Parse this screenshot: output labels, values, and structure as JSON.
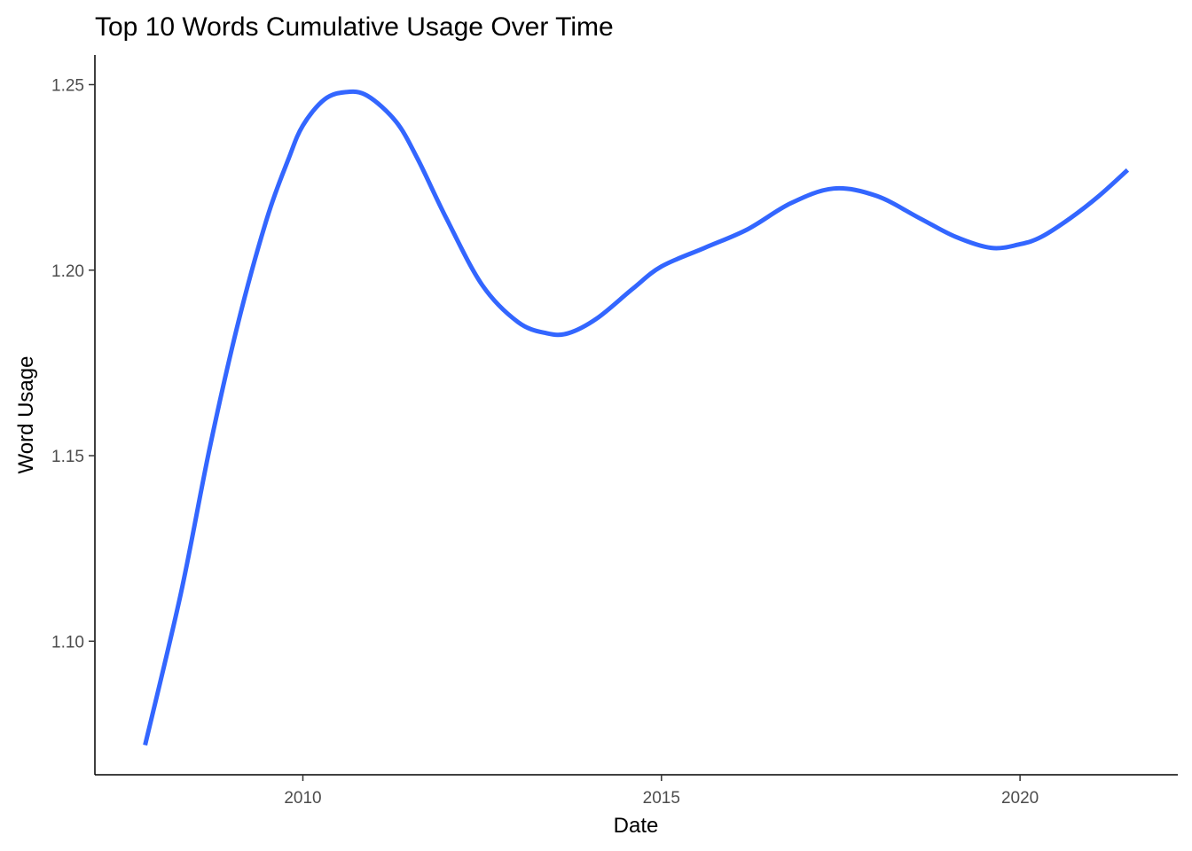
{
  "chart_data": {
    "type": "line",
    "title": "Top 10 Words Cumulative Usage Over Time",
    "xlabel": "Date",
    "ylabel": "Word Usage",
    "xlim": [
      2007.1,
      2022.2
    ],
    "ylim": [
      1.064,
      1.258
    ],
    "x_ticks": [
      {
        "value": 2010,
        "label": "2010"
      },
      {
        "value": 2015,
        "label": "2015"
      },
      {
        "value": 2020,
        "label": "2020"
      }
    ],
    "y_ticks": [
      {
        "value": 1.1,
        "label": "1.10"
      },
      {
        "value": 1.15,
        "label": "1.15"
      },
      {
        "value": 1.2,
        "label": "1.20"
      },
      {
        "value": 1.25,
        "label": "1.25"
      }
    ],
    "grid": false,
    "legend": "none",
    "series": [
      {
        "color": "#3366FF",
        "x": [
          2007.8,
          2008.3,
          2008.7,
          2009.1,
          2009.5,
          2009.8,
          2010.0,
          2010.3,
          2010.6,
          2010.9,
          2011.3,
          2011.6,
          2012.0,
          2012.5,
          2013.0,
          2013.4,
          2013.7,
          2014.1,
          2014.6,
          2015.0,
          2015.6,
          2016.2,
          2016.8,
          2017.4,
          2018.0,
          2018.6,
          2019.1,
          2019.6,
          2020.0,
          2020.3,
          2020.7,
          2021.1,
          2021.5
        ],
        "y": [
          1.072,
          1.113,
          1.152,
          1.186,
          1.214,
          1.23,
          1.239,
          1.246,
          1.248,
          1.247,
          1.24,
          1.23,
          1.214,
          1.196,
          1.186,
          1.183,
          1.183,
          1.187,
          1.195,
          1.201,
          1.206,
          1.211,
          1.218,
          1.222,
          1.22,
          1.214,
          1.209,
          1.206,
          1.207,
          1.209,
          1.214,
          1.22,
          1.227
        ]
      }
    ]
  }
}
